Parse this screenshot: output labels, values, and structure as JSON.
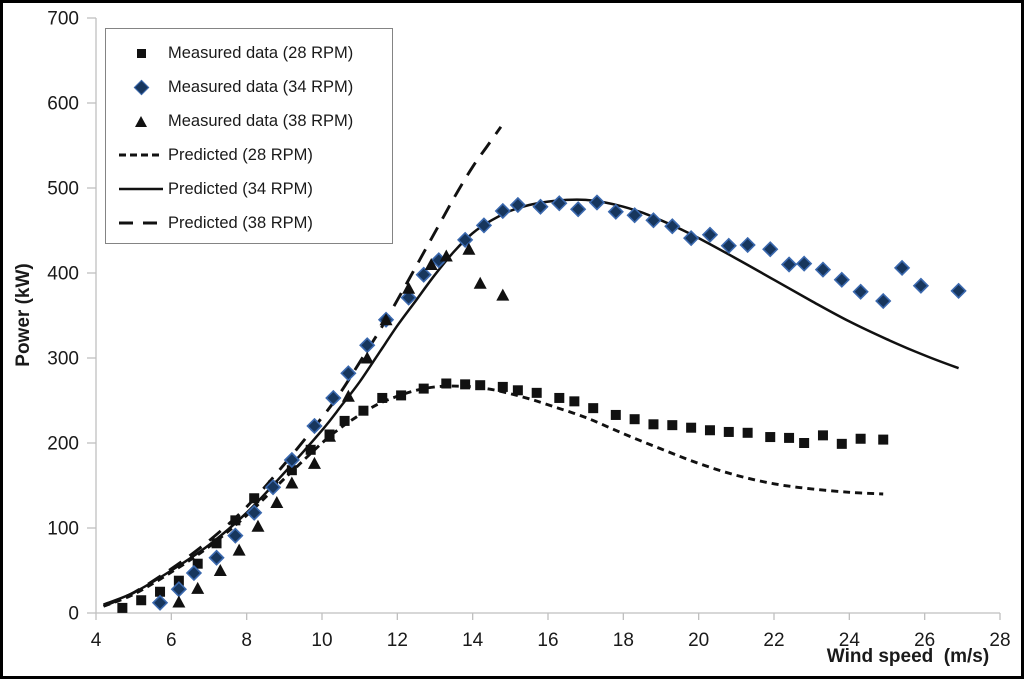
{
  "chart_data": {
    "type": "scatter",
    "title": "",
    "xlabel": "Wind speed  (m/s)",
    "ylabel": "Power (kW)",
    "xlim": [
      4,
      28
    ],
    "ylim": [
      0,
      700
    ],
    "xticks": [
      4,
      6,
      8,
      10,
      12,
      14,
      16,
      18,
      20,
      22,
      24,
      26,
      28
    ],
    "yticks": [
      0,
      100,
      200,
      300,
      400,
      500,
      600,
      700
    ],
    "grid": false,
    "legend_position": "top-left",
    "colors": {
      "axis": "#bfbfbf",
      "text": "#1a1a1a",
      "black_series": "#111111",
      "diamond_fill": "#17365d",
      "diamond_stroke": "#3a68ae",
      "legend_border": "#848484"
    },
    "series": [
      {
        "name": "Measured data (28 RPM)",
        "kind": "scatter",
        "marker": "square",
        "points": [
          [
            4.7,
            6
          ],
          [
            5.2,
            15
          ],
          [
            5.7,
            25
          ],
          [
            6.2,
            38
          ],
          [
            6.7,
            58
          ],
          [
            7.2,
            82
          ],
          [
            7.7,
            109
          ],
          [
            8.2,
            135
          ],
          [
            8.7,
            150
          ],
          [
            9.2,
            168
          ],
          [
            9.7,
            192
          ],
          [
            10.2,
            210
          ],
          [
            10.6,
            226
          ],
          [
            11.1,
            238
          ],
          [
            11.6,
            253
          ],
          [
            12.1,
            256
          ],
          [
            12.7,
            264
          ],
          [
            13.3,
            270
          ],
          [
            13.8,
            269
          ],
          [
            14.2,
            268
          ],
          [
            14.8,
            266
          ],
          [
            15.2,
            262
          ],
          [
            15.7,
            259
          ],
          [
            16.3,
            253
          ],
          [
            16.7,
            249
          ],
          [
            17.2,
            241
          ],
          [
            17.8,
            233
          ],
          [
            18.3,
            228
          ],
          [
            18.8,
            222
          ],
          [
            19.3,
            221
          ],
          [
            19.8,
            218
          ],
          [
            20.3,
            215
          ],
          [
            20.8,
            213
          ],
          [
            21.3,
            212
          ],
          [
            21.9,
            207
          ],
          [
            22.4,
            206
          ],
          [
            22.8,
            200
          ],
          [
            23.3,
            209
          ],
          [
            23.8,
            199
          ],
          [
            24.3,
            205
          ],
          [
            24.9,
            204
          ]
        ]
      },
      {
        "name": "Measured data (34 RPM)",
        "kind": "scatter",
        "marker": "diamond",
        "points": [
          [
            5.7,
            12
          ],
          [
            6.2,
            28
          ],
          [
            6.6,
            47
          ],
          [
            7.2,
            65
          ],
          [
            7.7,
            91
          ],
          [
            8.2,
            118
          ],
          [
            8.7,
            148
          ],
          [
            9.2,
            180
          ],
          [
            9.8,
            220
          ],
          [
            10.3,
            253
          ],
          [
            10.7,
            282
          ],
          [
            11.2,
            315
          ],
          [
            11.7,
            345
          ],
          [
            12.3,
            371
          ],
          [
            12.7,
            398
          ],
          [
            13.1,
            415
          ],
          [
            13.8,
            439
          ],
          [
            14.3,
            456
          ],
          [
            14.8,
            473
          ],
          [
            15.2,
            480
          ],
          [
            15.8,
            478
          ],
          [
            16.3,
            482
          ],
          [
            16.8,
            475
          ],
          [
            17.3,
            483
          ],
          [
            17.8,
            472
          ],
          [
            18.3,
            468
          ],
          [
            18.8,
            462
          ],
          [
            19.3,
            455
          ],
          [
            19.8,
            441
          ],
          [
            20.3,
            445
          ],
          [
            20.8,
            432
          ],
          [
            21.3,
            433
          ],
          [
            21.9,
            428
          ],
          [
            22.4,
            410
          ],
          [
            22.8,
            411
          ],
          [
            23.3,
            404
          ],
          [
            23.8,
            392
          ],
          [
            24.3,
            378
          ],
          [
            24.9,
            367
          ],
          [
            25.4,
            406
          ],
          [
            25.9,
            385
          ],
          [
            26.9,
            379
          ]
        ]
      },
      {
        "name": "Measured data (38 RPM)",
        "kind": "scatter",
        "marker": "triangle",
        "points": [
          [
            6.2,
            13
          ],
          [
            6.7,
            29
          ],
          [
            7.3,
            50
          ],
          [
            7.8,
            74
          ],
          [
            8.3,
            102
          ],
          [
            8.8,
            130
          ],
          [
            9.2,
            153
          ],
          [
            9.8,
            176
          ],
          [
            10.2,
            208
          ],
          [
            10.7,
            255
          ],
          [
            11.2,
            300
          ],
          [
            11.7,
            345
          ],
          [
            12.3,
            382
          ],
          [
            12.9,
            410
          ],
          [
            13.3,
            420
          ],
          [
            13.9,
            428
          ],
          [
            14.2,
            388
          ],
          [
            14.8,
            374
          ]
        ]
      },
      {
        "name": "Predicted (28 RPM)",
        "kind": "line",
        "dash": "short",
        "points": [
          [
            4.2,
            8
          ],
          [
            5,
            22
          ],
          [
            6,
            48
          ],
          [
            7,
            78
          ],
          [
            8,
            115
          ],
          [
            9,
            158
          ],
          [
            10,
            200
          ],
          [
            10.5,
            218
          ],
          [
            11,
            233
          ],
          [
            11.5,
            246
          ],
          [
            12,
            255
          ],
          [
            12.5,
            262
          ],
          [
            13,
            266
          ],
          [
            13.5,
            267
          ],
          [
            14,
            266
          ],
          [
            14.5,
            263
          ],
          [
            15,
            258
          ],
          [
            15.5,
            252
          ],
          [
            16,
            245
          ],
          [
            17,
            230
          ],
          [
            18,
            211
          ],
          [
            19,
            193
          ],
          [
            20,
            176
          ],
          [
            21,
            162
          ],
          [
            22,
            152
          ],
          [
            23,
            146
          ],
          [
            24,
            142
          ],
          [
            24.9,
            140
          ]
        ]
      },
      {
        "name": "Predicted (34 RPM)",
        "kind": "line",
        "dash": "solid",
        "points": [
          [
            4.2,
            10
          ],
          [
            5,
            24
          ],
          [
            6,
            50
          ],
          [
            7,
            80
          ],
          [
            8,
            118
          ],
          [
            9,
            165
          ],
          [
            10,
            215
          ],
          [
            10.5,
            243
          ],
          [
            11,
            272
          ],
          [
            11.5,
            305
          ],
          [
            12,
            338
          ],
          [
            12.5,
            368
          ],
          [
            13,
            398
          ],
          [
            13.5,
            425
          ],
          [
            14,
            447
          ],
          [
            14.5,
            462
          ],
          [
            15,
            473
          ],
          [
            15.5,
            480
          ],
          [
            16,
            484
          ],
          [
            16.5,
            486
          ],
          [
            17,
            486
          ],
          [
            17.5,
            483
          ],
          [
            18,
            478
          ],
          [
            18.5,
            471
          ],
          [
            19,
            462
          ],
          [
            19.5,
            452
          ],
          [
            20,
            441
          ],
          [
            21,
            417
          ],
          [
            22,
            392
          ],
          [
            23,
            367
          ],
          [
            24,
            343
          ],
          [
            25,
            322
          ],
          [
            26,
            303
          ],
          [
            26.9,
            288
          ]
        ]
      },
      {
        "name": "Predicted (38 RPM)",
        "kind": "line",
        "dash": "long",
        "points": [
          [
            4.2,
            8
          ],
          [
            5,
            24
          ],
          [
            6,
            52
          ],
          [
            7,
            85
          ],
          [
            8,
            125
          ],
          [
            9,
            175
          ],
          [
            10,
            230
          ],
          [
            10.5,
            260
          ],
          [
            11,
            295
          ],
          [
            11.5,
            330
          ],
          [
            12,
            368
          ],
          [
            12.5,
            408
          ],
          [
            13,
            448
          ],
          [
            13.5,
            488
          ],
          [
            14,
            525
          ],
          [
            14.4,
            550
          ],
          [
            14.75,
            572
          ]
        ]
      }
    ]
  }
}
